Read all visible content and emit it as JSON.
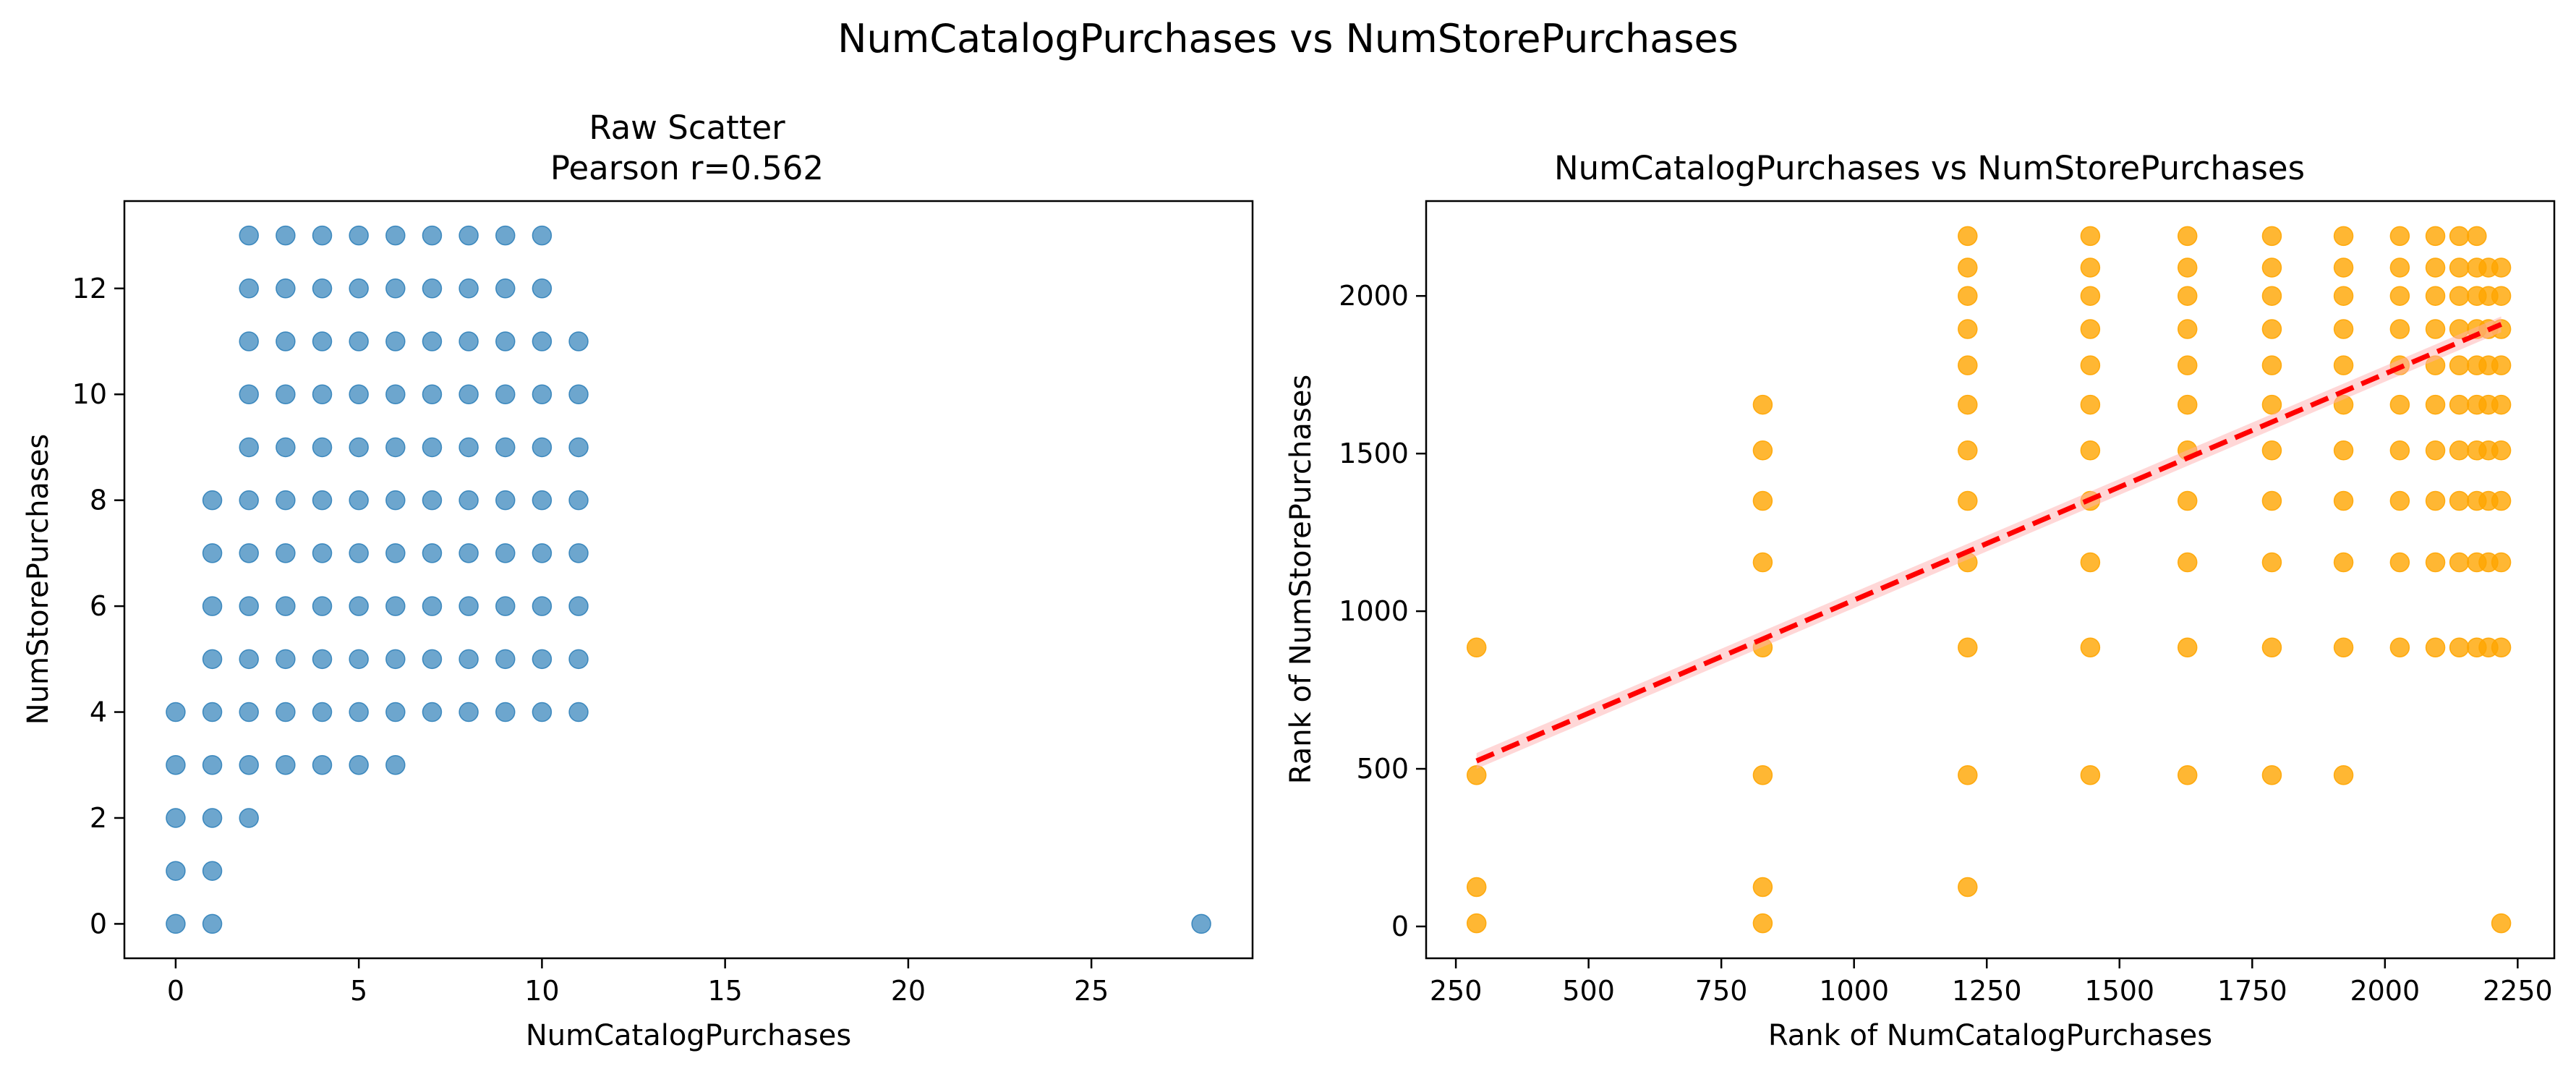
{
  "suptitle": "NumCatalogPurchases vs NumStorePurchases",
  "chart_data": [
    {
      "type": "scatter",
      "title_line1": "Raw Scatter",
      "title_line2": "Pearson r=0.562",
      "xlabel": "NumCatalogPurchases",
      "ylabel": "NumStorePurchases",
      "xlim": [
        -1.4,
        29.4
      ],
      "ylim": [
        -0.65,
        13.65
      ],
      "xticks": [
        0,
        5,
        10,
        15,
        20,
        25
      ],
      "yticks": [
        0,
        2,
        4,
        6,
        8,
        10,
        12
      ],
      "color": "#1f77b4",
      "grid": false,
      "points": [
        [
          0,
          0
        ],
        [
          0,
          1
        ],
        [
          0,
          2
        ],
        [
          0,
          3
        ],
        [
          0,
          4
        ],
        [
          1,
          0
        ],
        [
          1,
          1
        ],
        [
          1,
          2
        ],
        [
          1,
          3
        ],
        [
          1,
          4
        ],
        [
          1,
          5
        ],
        [
          1,
          6
        ],
        [
          1,
          7
        ],
        [
          1,
          8
        ],
        [
          2,
          2
        ],
        [
          2,
          3
        ],
        [
          2,
          4
        ],
        [
          2,
          5
        ],
        [
          2,
          6
        ],
        [
          2,
          7
        ],
        [
          2,
          8
        ],
        [
          2,
          9
        ],
        [
          2,
          10
        ],
        [
          2,
          11
        ],
        [
          2,
          12
        ],
        [
          2,
          13
        ],
        [
          3,
          3
        ],
        [
          3,
          4
        ],
        [
          3,
          5
        ],
        [
          3,
          6
        ],
        [
          3,
          7
        ],
        [
          3,
          8
        ],
        [
          3,
          9
        ],
        [
          3,
          10
        ],
        [
          3,
          11
        ],
        [
          3,
          12
        ],
        [
          3,
          13
        ],
        [
          4,
          3
        ],
        [
          4,
          4
        ],
        [
          4,
          5
        ],
        [
          4,
          6
        ],
        [
          4,
          7
        ],
        [
          4,
          8
        ],
        [
          4,
          9
        ],
        [
          4,
          10
        ],
        [
          4,
          11
        ],
        [
          4,
          12
        ],
        [
          4,
          13
        ],
        [
          5,
          3
        ],
        [
          5,
          4
        ],
        [
          5,
          5
        ],
        [
          5,
          6
        ],
        [
          5,
          7
        ],
        [
          5,
          8
        ],
        [
          5,
          9
        ],
        [
          5,
          10
        ],
        [
          5,
          11
        ],
        [
          5,
          12
        ],
        [
          5,
          13
        ],
        [
          6,
          3
        ],
        [
          6,
          4
        ],
        [
          6,
          5
        ],
        [
          6,
          6
        ],
        [
          6,
          7
        ],
        [
          6,
          8
        ],
        [
          6,
          9
        ],
        [
          6,
          10
        ],
        [
          6,
          11
        ],
        [
          6,
          12
        ],
        [
          6,
          13
        ],
        [
          7,
          4
        ],
        [
          7,
          5
        ],
        [
          7,
          6
        ],
        [
          7,
          7
        ],
        [
          7,
          8
        ],
        [
          7,
          9
        ],
        [
          7,
          10
        ],
        [
          7,
          11
        ],
        [
          7,
          12
        ],
        [
          7,
          13
        ],
        [
          8,
          4
        ],
        [
          8,
          5
        ],
        [
          8,
          6
        ],
        [
          8,
          7
        ],
        [
          8,
          8
        ],
        [
          8,
          9
        ],
        [
          8,
          10
        ],
        [
          8,
          11
        ],
        [
          8,
          12
        ],
        [
          8,
          13
        ],
        [
          9,
          4
        ],
        [
          9,
          5
        ],
        [
          9,
          6
        ],
        [
          9,
          7
        ],
        [
          9,
          8
        ],
        [
          9,
          9
        ],
        [
          9,
          10
        ],
        [
          9,
          11
        ],
        [
          9,
          12
        ],
        [
          9,
          13
        ],
        [
          10,
          4
        ],
        [
          10,
          5
        ],
        [
          10,
          6
        ],
        [
          10,
          7
        ],
        [
          10,
          8
        ],
        [
          10,
          9
        ],
        [
          10,
          10
        ],
        [
          10,
          11
        ],
        [
          10,
          12
        ],
        [
          10,
          13
        ],
        [
          11,
          4
        ],
        [
          11,
          5
        ],
        [
          11,
          6
        ],
        [
          11,
          7
        ],
        [
          11,
          8
        ],
        [
          11,
          9
        ],
        [
          11,
          10
        ],
        [
          11,
          11
        ],
        [
          28,
          0
        ]
      ]
    },
    {
      "type": "scatter",
      "title": "NumCatalogPurchases vs NumStorePurchases",
      "xlabel": "Rank of NumCatalogPurchases",
      "ylabel": "Rank of NumStorePurchases",
      "xlim": [
        194,
        2319
      ],
      "ylim": [
        -101,
        2301
      ],
      "xticks": [
        250,
        500,
        750,
        1000,
        1250,
        1500,
        1750,
        2000,
        2250
      ],
      "yticks": [
        0,
        500,
        1000,
        1500,
        2000
      ],
      "color": "#ffa500",
      "grid": false,
      "x_ranks": [
        289,
        828,
        1214,
        1445,
        1628,
        1787,
        1922,
        2028,
        2095,
        2140,
        2173,
        2195,
        2219
      ],
      "y_ranks": [
        10,
        125,
        480,
        885,
        1155,
        1350,
        1510,
        1655,
        1780,
        1895,
        2000,
        2090,
        2190
      ],
      "points_idx": [
        [
          0,
          0
        ],
        [
          0,
          1
        ],
        [
          0,
          2
        ],
        [
          0,
          3
        ],
        [
          1,
          0
        ],
        [
          1,
          1
        ],
        [
          1,
          2
        ],
        [
          1,
          3
        ],
        [
          1,
          4
        ],
        [
          1,
          5
        ],
        [
          1,
          6
        ],
        [
          1,
          7
        ],
        [
          2,
          1
        ],
        [
          2,
          2
        ],
        [
          2,
          3
        ],
        [
          2,
          4
        ],
        [
          2,
          5
        ],
        [
          2,
          6
        ],
        [
          2,
          7
        ],
        [
          2,
          8
        ],
        [
          2,
          9
        ],
        [
          2,
          10
        ],
        [
          2,
          11
        ],
        [
          2,
          12
        ],
        [
          3,
          2
        ],
        [
          3,
          3
        ],
        [
          3,
          4
        ],
        [
          3,
          5
        ],
        [
          3,
          6
        ],
        [
          3,
          7
        ],
        [
          3,
          8
        ],
        [
          3,
          9
        ],
        [
          3,
          10
        ],
        [
          3,
          11
        ],
        [
          3,
          12
        ],
        [
          4,
          2
        ],
        [
          4,
          3
        ],
        [
          4,
          4
        ],
        [
          4,
          5
        ],
        [
          4,
          6
        ],
        [
          4,
          7
        ],
        [
          4,
          8
        ],
        [
          4,
          9
        ],
        [
          4,
          10
        ],
        [
          4,
          11
        ],
        [
          4,
          12
        ],
        [
          5,
          2
        ],
        [
          5,
          3
        ],
        [
          5,
          4
        ],
        [
          5,
          5
        ],
        [
          5,
          6
        ],
        [
          5,
          7
        ],
        [
          5,
          8
        ],
        [
          5,
          9
        ],
        [
          5,
          10
        ],
        [
          5,
          11
        ],
        [
          5,
          12
        ],
        [
          6,
          2
        ],
        [
          6,
          3
        ],
        [
          6,
          4
        ],
        [
          6,
          5
        ],
        [
          6,
          6
        ],
        [
          6,
          7
        ],
        [
          6,
          8
        ],
        [
          6,
          9
        ],
        [
          6,
          10
        ],
        [
          6,
          11
        ],
        [
          6,
          12
        ],
        [
          7,
          3
        ],
        [
          7,
          4
        ],
        [
          7,
          5
        ],
        [
          7,
          6
        ],
        [
          7,
          7
        ],
        [
          7,
          8
        ],
        [
          7,
          9
        ],
        [
          7,
          10
        ],
        [
          7,
          11
        ],
        [
          7,
          12
        ],
        [
          8,
          3
        ],
        [
          8,
          4
        ],
        [
          8,
          5
        ],
        [
          8,
          6
        ],
        [
          8,
          7
        ],
        [
          8,
          8
        ],
        [
          8,
          9
        ],
        [
          8,
          10
        ],
        [
          8,
          11
        ],
        [
          8,
          12
        ],
        [
          9,
          3
        ],
        [
          9,
          4
        ],
        [
          9,
          5
        ],
        [
          9,
          6
        ],
        [
          9,
          7
        ],
        [
          9,
          8
        ],
        [
          9,
          9
        ],
        [
          9,
          10
        ],
        [
          9,
          11
        ],
        [
          9,
          12
        ],
        [
          10,
          3
        ],
        [
          10,
          4
        ],
        [
          10,
          5
        ],
        [
          10,
          6
        ],
        [
          10,
          7
        ],
        [
          10,
          8
        ],
        [
          10,
          9
        ],
        [
          10,
          10
        ],
        [
          10,
          11
        ],
        [
          10,
          12
        ],
        [
          11,
          3
        ],
        [
          11,
          4
        ],
        [
          11,
          5
        ],
        [
          11,
          6
        ],
        [
          11,
          7
        ],
        [
          11,
          8
        ],
        [
          11,
          9
        ],
        [
          11,
          10
        ],
        [
          11,
          11
        ],
        [
          12,
          0
        ],
        [
          12,
          3
        ],
        [
          12,
          4
        ],
        [
          12,
          5
        ],
        [
          12,
          6
        ],
        [
          12,
          7
        ],
        [
          12,
          8
        ],
        [
          12,
          9
        ],
        [
          12,
          10
        ],
        [
          12,
          11
        ]
      ],
      "trendline": {
        "x": [
          289,
          2219
        ],
        "y": [
          525,
          1910
        ],
        "color": "#ff0000",
        "style": "dashed"
      }
    }
  ]
}
